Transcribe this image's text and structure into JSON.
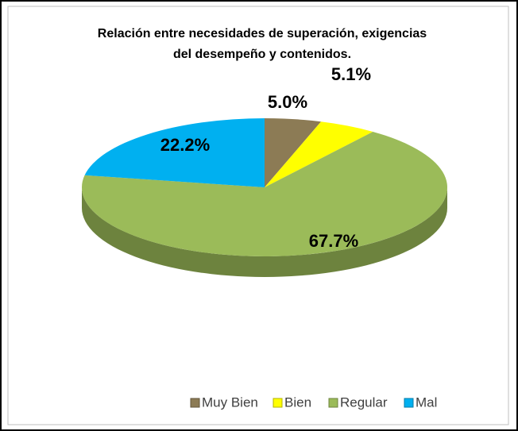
{
  "chart_data": {
    "type": "pie",
    "title": "Relación entre necesidades de superación, exigencias del desempeño y contenidos.",
    "categories": [
      "Muy Bien",
      "Bien",
      "Regular",
      "Mal"
    ],
    "values": [
      5.0,
      5.1,
      67.7,
      22.2
    ],
    "value_labels": [
      "5.0%",
      "5.1%",
      "67.7%",
      "22.2%"
    ],
    "colors": [
      "#8c7b55",
      "#ffff00",
      "#9bbb59",
      "#00b0f0"
    ],
    "legend": "bottom"
  }
}
